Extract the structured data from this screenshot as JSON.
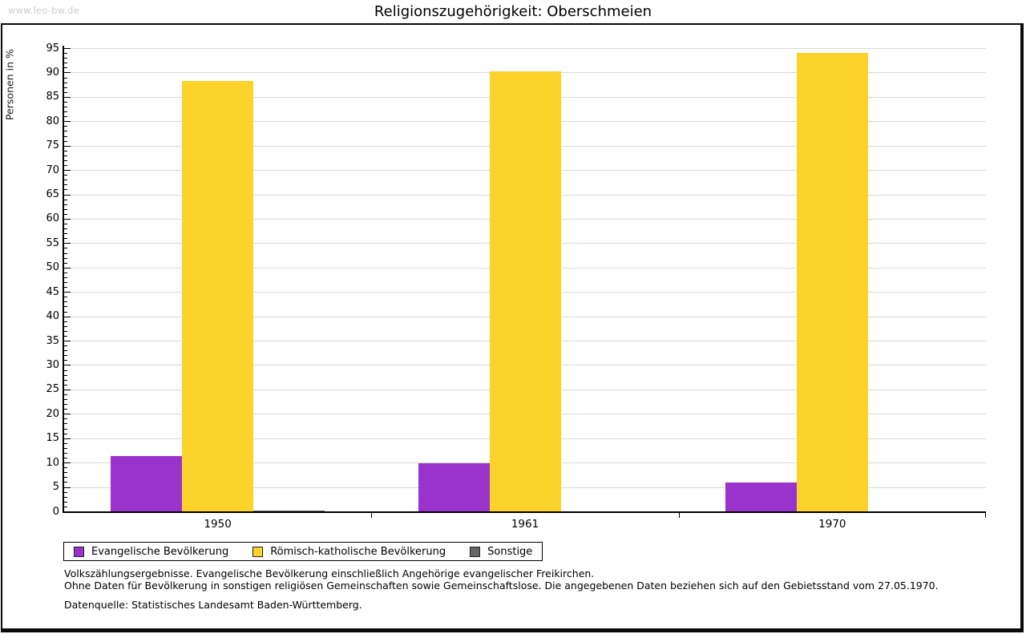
{
  "header": {
    "watermark": "www.leo-bw.de",
    "title": "Religionszugehörigkeit: Oberschmeien"
  },
  "chart_data": {
    "type": "bar",
    "title": "Religionszugehörigkeit: Oberschmeien",
    "xlabel": "",
    "ylabel": "Personen in %",
    "ylim": [
      0,
      95
    ],
    "ytick_step": 5,
    "y_minor_step": 1,
    "grid": true,
    "legend_position": "bottom-left",
    "categories": [
      "1950",
      "1961",
      "1970"
    ],
    "series": [
      {
        "name": "Evangelische Bevölkerung",
        "slug": "evangelische",
        "color": "#9933cc",
        "values": [
          11.4,
          9.8,
          6.0
        ]
      },
      {
        "name": "Römisch-katholische Bevölkerung",
        "slug": "katholische",
        "color": "#fcd32b",
        "values": [
          88.3,
          90.2,
          94.0
        ]
      },
      {
        "name": "Sonstige",
        "slug": "sonstige",
        "color": "#666666",
        "values": [
          0.2,
          0,
          0
        ]
      }
    ]
  },
  "footnotes": {
    "line1": "Volkszählungsergebnisse. Evangelische Bevölkerung einschließlich Angehörige evangelischer Freikirchen.",
    "line2": "Ohne Daten für Bevölkerung in sonstigen religiösen Gemeinschaften sowie Gemeinschaftslose. Die angegebenen Daten beziehen sich auf den Gebietsstand vom 27.05.1970.",
    "source": "Datenquelle: Statistisches Landesamt Baden-Württemberg."
  }
}
